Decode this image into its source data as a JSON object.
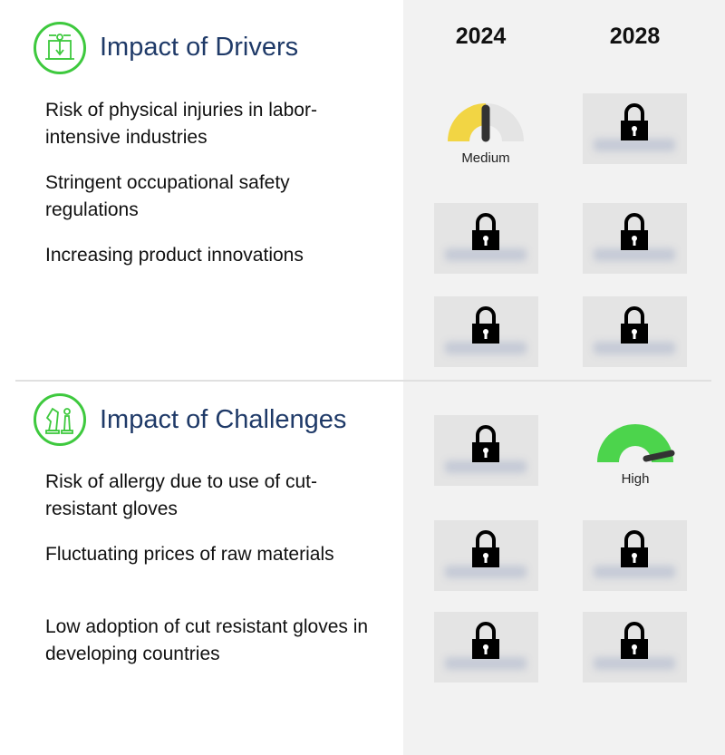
{
  "years": [
    "2024",
    "2028"
  ],
  "drivers": {
    "title": "Impact of Drivers",
    "icon": "drivers-machine-icon",
    "items": [
      {
        "label": "Risk of physical injuries in labor-intensive industries"
      },
      {
        "label": "Stringent occupational safety regulations"
      },
      {
        "label": "Increasing product innovations"
      }
    ]
  },
  "challenges": {
    "title": "Impact of Challenges",
    "icon": "chess-pieces-icon",
    "items": [
      {
        "label": "Risk of allergy due to use of cut-resistant gloves"
      },
      {
        "label": "Fluctuating prices of raw materials"
      },
      {
        "label": "Low adoption of cut resistant gloves in developing countries"
      }
    ]
  },
  "gauges": {
    "medium": {
      "label": "Medium",
      "color": "#f2d544",
      "level": 0.5
    },
    "high": {
      "label": "High",
      "color": "#4cd44c",
      "level": 0.9
    }
  },
  "colors": {
    "accent": "#3ec93e",
    "title": "#1f3a68",
    "panel": "#f2f2f2"
  }
}
